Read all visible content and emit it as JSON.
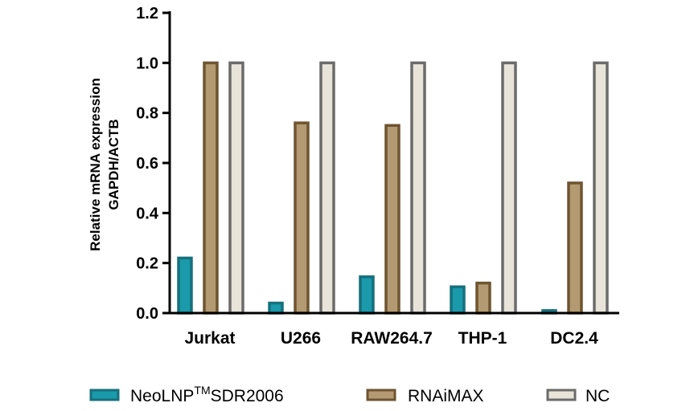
{
  "chart_data": {
    "type": "bar",
    "categories": [
      "Jurkat",
      "U266",
      "RAW264.7",
      "THP-1",
      "DC2.4"
    ],
    "series": [
      {
        "name": "NeoLNP™SDR2006",
        "name_parts": {
          "base": "NeoLNP",
          "sup": "TM",
          "suffix": "SDR2006"
        },
        "fill": "#1a9aab",
        "stroke": "#16707c",
        "values": [
          0.22,
          0.04,
          0.145,
          0.105,
          0.01
        ]
      },
      {
        "name": "RNAiMAX",
        "fill": "#b39a72",
        "stroke": "#6e5530",
        "values": [
          1.0,
          0.76,
          0.75,
          0.12,
          0.52
        ]
      },
      {
        "name": "NC",
        "fill": "#e8e4da",
        "stroke": "#6b6b6b",
        "values": [
          1.0,
          1.0,
          1.0,
          1.0,
          1.0
        ]
      }
    ],
    "ylabel_line1": "Relative mRNA expression",
    "ylabel_line2": "GAPDH/ACTB",
    "ylim": [
      0,
      1.2
    ],
    "yticks": [
      "0.0",
      "0.2",
      "0.4",
      "0.6",
      "0.8",
      "1.0",
      "1.2"
    ],
    "grid": false,
    "legend_position": "bottom"
  }
}
